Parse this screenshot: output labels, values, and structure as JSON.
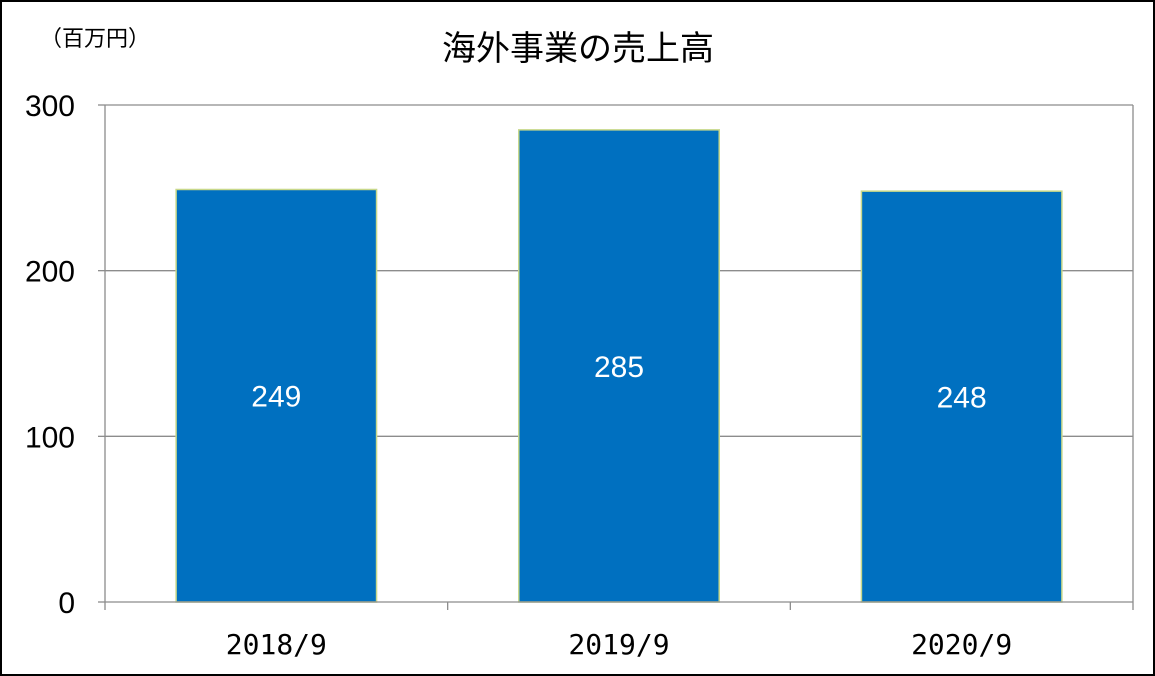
{
  "chart_data": {
    "type": "bar",
    "title": "海外事業の売上高",
    "unit_label": "（百万円）",
    "categories": [
      "2018/9",
      "2019/9",
      "2020/9"
    ],
    "values": [
      249,
      285,
      248
    ],
    "data_labels": [
      "249",
      "285",
      "248"
    ],
    "ylim": [
      0,
      300
    ],
    "yticks": [
      0,
      100,
      200,
      300
    ],
    "ytick_labels": [
      "0",
      "100",
      "200",
      "300"
    ],
    "grid": true,
    "legend": "none",
    "colors": {
      "bar": "#0070C0",
      "bar_edge": "#C8D88A",
      "grid": "#8C8C8C",
      "axis": "#8C8C8C"
    }
  }
}
